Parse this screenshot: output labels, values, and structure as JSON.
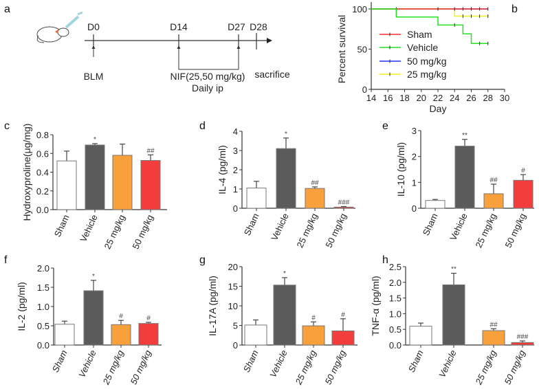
{
  "panel_labels": [
    "a",
    "b",
    "c",
    "d",
    "e",
    "f",
    "g",
    "h"
  ],
  "timeline": {
    "days": [
      "D0",
      "D14",
      "D27",
      "D28"
    ],
    "blm_label": "BLM",
    "treatment_label": "NIF(25,50 mg/kg)",
    "treatment_sub": "Daily ip",
    "end_label": "sacrifice"
  },
  "colors": {
    "Sham": "#ffffff",
    "Vehicle": "#5b5b5b",
    "25 mg/kg": "#f8a03c",
    "50 mg/kg": "#f23d3d"
  },
  "chart_data": [
    {
      "panel": "b",
      "type": "line",
      "title": "",
      "xlabel": "Day",
      "ylabel": "Percent survival",
      "xlim": [
        14,
        30
      ],
      "ylim": [
        0,
        100
      ],
      "xticks": [
        14,
        16,
        18,
        20,
        22,
        24,
        26,
        28,
        30
      ],
      "yticks": [
        0,
        50,
        100
      ],
      "legend_position": "center-left",
      "series": [
        {
          "name": "Sham",
          "color": "#f23030",
          "steps": [
            [
              14,
              100
            ],
            [
              28,
              100
            ]
          ],
          "censor": [
            17,
            22,
            24,
            25,
            26,
            27,
            28
          ]
        },
        {
          "name": "Vehicle",
          "color": "#22e022",
          "steps": [
            [
              14,
              100
            ],
            [
              17,
              90
            ],
            [
              22,
              80
            ],
            [
              25,
              69
            ],
            [
              26,
              57
            ],
            [
              28,
              57
            ]
          ],
          "censor": [
            24,
            27,
            28
          ]
        },
        {
          "name": "50 mg/kg",
          "color": "#2030ff",
          "steps": [
            [
              14,
              100
            ],
            [
              28,
              100
            ]
          ],
          "censor": []
        },
        {
          "name": "25 mg/kg",
          "color": "#f0f020",
          "steps": [
            [
              14,
              100
            ],
            [
              24,
              91
            ],
            [
              28,
              91
            ]
          ],
          "censor": [
            25,
            26,
            27,
            28
          ]
        }
      ]
    },
    {
      "panel": "c",
      "type": "bar",
      "ylabel": "Hydroxyproline(μg/mg)",
      "ylim": [
        0,
        0.8
      ],
      "yticks": [
        "0.0",
        "0.2",
        "0.4",
        "0.6",
        "0.8"
      ],
      "categories": [
        "Sham",
        "Vehicle",
        "25 mg/kg",
        "50 mg/kg"
      ],
      "values": [
        0.52,
        0.69,
        0.58,
        0.525
      ],
      "errors": [
        0.105,
        0.015,
        0.12,
        0.06
      ],
      "significance": [
        "",
        "*",
        "",
        "##"
      ]
    },
    {
      "panel": "d",
      "type": "bar",
      "ylabel": "IL-4 (pg/ml)",
      "ylim": [
        0,
        4
      ],
      "yticks": [
        "0",
        "1",
        "2",
        "3",
        "4"
      ],
      "categories": [
        "Sham",
        "Vehicle",
        "25 mg/kg",
        "50 mg/kg"
      ],
      "values": [
        1.05,
        3.1,
        1.03,
        0.06
      ],
      "errors": [
        0.35,
        0.55,
        0.08,
        0.03
      ],
      "significance": [
        "",
        "*",
        "##",
        "###"
      ]
    },
    {
      "panel": "e",
      "type": "bar",
      "ylabel": "IL-10 (pg/ml)",
      "ylim": [
        0,
        3
      ],
      "yticks": [
        "0",
        "1",
        "2",
        "3"
      ],
      "categories": [
        "Sham",
        "Vehicle",
        "25 mg/kg",
        "50 mg/kg"
      ],
      "values": [
        0.3,
        2.4,
        0.56,
        1.08
      ],
      "errors": [
        0.04,
        0.26,
        0.37,
        0.22
      ],
      "significance": [
        "",
        "**",
        "##",
        "#"
      ]
    },
    {
      "panel": "f",
      "type": "bar",
      "ylabel": "IL-2 (pg/ml)",
      "ylim": [
        0,
        2
      ],
      "yticks": [
        "0.0",
        "0.5",
        "1.0",
        "1.5",
        "2.0"
      ],
      "categories": [
        "Sham",
        "Vehicle",
        "25 mg/kg",
        "50 mg/kg"
      ],
      "values": [
        0.54,
        1.41,
        0.53,
        0.56
      ],
      "errors": [
        0.08,
        0.27,
        0.11,
        0.03
      ],
      "significance": [
        "",
        "*",
        "#",
        "#"
      ]
    },
    {
      "panel": "g",
      "type": "bar",
      "ylabel": "IL-17A (pg/ml)",
      "ylim": [
        0,
        20
      ],
      "yticks": [
        "0",
        "5",
        "10",
        "15",
        "20"
      ],
      "categories": [
        "Sham",
        "Vehicle",
        "25 mg/kg",
        "50 mg/kg"
      ],
      "values": [
        5.1,
        15.3,
        4.9,
        3.6
      ],
      "errors": [
        1.3,
        1.9,
        1.0,
        3.1
      ],
      "significance": [
        "",
        "*",
        "#",
        "#"
      ]
    },
    {
      "panel": "h",
      "type": "bar",
      "ylabel": "TNF-α (pg/ml)",
      "ylim": [
        0,
        2.5
      ],
      "yticks": [
        "0.0",
        "0.5",
        "1.0",
        "1.5",
        "2.0",
        "2.5"
      ],
      "categories": [
        "Sham",
        "Vehicle",
        "25 mg/kg",
        "50 mg/kg"
      ],
      "values": [
        0.6,
        1.92,
        0.46,
        0.08
      ],
      "errors": [
        0.1,
        0.37,
        0.06,
        0.05
      ],
      "significance": [
        "",
        "**",
        "##",
        "###"
      ]
    }
  ]
}
